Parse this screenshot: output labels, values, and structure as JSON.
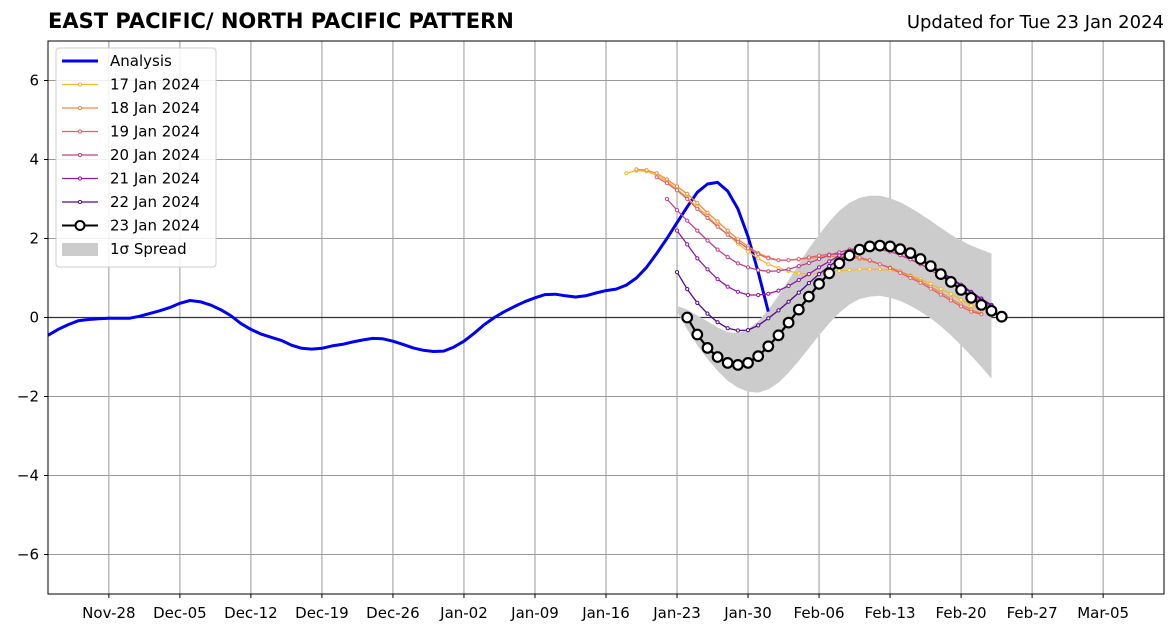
{
  "title": "EAST PACIFIC/ NORTH PACIFIC PATTERN",
  "subtitle": "Updated for Tue 23 Jan 2024",
  "colors": {
    "analysis": "#0000ee",
    "spread": "#cccccc",
    "grid": "#999999",
    "zero_line": "#333333"
  },
  "chart_data": {
    "type": "line",
    "title": "EAST PACIFIC/ NORTH PACIFIC PATTERN",
    "subtitle": "Updated for Tue 23 Jan 2024",
    "xlabel": "",
    "ylabel": "",
    "xlim": [
      "2023-11-22",
      "2024-03-11"
    ],
    "ylim": [
      -7,
      7
    ],
    "x_ticks": [
      "Nov-28",
      "Dec-05",
      "Dec-12",
      "Dec-19",
      "Dec-26",
      "Jan-02",
      "Jan-09",
      "Jan-16",
      "Jan-23",
      "Jan-30",
      "Feb-06",
      "Feb-13",
      "Feb-20",
      "Feb-27",
      "Mar-05"
    ],
    "x_tick_dates": [
      "2023-11-28",
      "2023-12-05",
      "2023-12-12",
      "2023-12-19",
      "2023-12-26",
      "2024-01-02",
      "2024-01-09",
      "2024-01-16",
      "2024-01-23",
      "2024-01-30",
      "2024-02-06",
      "2024-02-13",
      "2024-02-20",
      "2024-02-27",
      "2024-03-05"
    ],
    "y_ticks": [
      "6",
      "4",
      "2",
      "0",
      "−2",
      "−4",
      "−6"
    ],
    "y_tick_values": [
      6,
      4,
      2,
      0,
      -2,
      -4,
      -6
    ],
    "grid": true,
    "legend_position": "upper-left",
    "analysis": {
      "name": "Analysis",
      "color": "#0000ee",
      "start": "2023-11-22",
      "values": [
        -0.45,
        -0.3,
        -0.18,
        -0.08,
        -0.05,
        -0.03,
        -0.02,
        -0.02,
        -0.02,
        0.03,
        0.1,
        0.17,
        0.25,
        0.36,
        0.43,
        0.4,
        0.32,
        0.2,
        0.05,
        -0.15,
        -0.3,
        -0.42,
        -0.5,
        -0.58,
        -0.7,
        -0.78,
        -0.8,
        -0.78,
        -0.72,
        -0.68,
        -0.62,
        -0.57,
        -0.53,
        -0.54,
        -0.6,
        -0.68,
        -0.77,
        -0.83,
        -0.86,
        -0.85,
        -0.75,
        -0.6,
        -0.4,
        -0.18,
        0.0,
        0.15,
        0.28,
        0.4,
        0.5,
        0.58,
        0.59,
        0.55,
        0.52,
        0.55,
        0.62,
        0.68,
        0.72,
        0.82,
        1.0,
        1.27,
        1.62,
        2.0,
        2.4,
        2.8,
        3.17,
        3.38,
        3.42,
        3.2,
        2.75,
        2.05,
        1.15,
        0.15
      ]
    },
    "forecasts": [
      {
        "name": "17 Jan 2024",
        "color": "#f5b82e",
        "start": "2024-01-18",
        "values": [
          3.65,
          3.72,
          3.7,
          3.6,
          3.45,
          3.25,
          3.03,
          2.8,
          2.57,
          2.32,
          2.1,
          1.87,
          1.67,
          1.5,
          1.35,
          1.25,
          1.18,
          1.12,
          1.1,
          1.12,
          1.15,
          1.18,
          1.2,
          1.22,
          1.22,
          1.22,
          1.2,
          1.15,
          1.07,
          0.97,
          0.85,
          0.72,
          0.6,
          0.45,
          0.3,
          0.18
        ]
      },
      {
        "name": "18 Jan 2024",
        "color": "#f08c40",
        "start": "2024-01-19",
        "values": [
          3.75,
          3.73,
          3.65,
          3.5,
          3.32,
          3.13,
          2.9,
          2.65,
          2.43,
          2.2,
          1.98,
          1.8,
          1.63,
          1.52,
          1.45,
          1.45,
          1.47,
          1.5,
          1.53,
          1.55,
          1.55,
          1.53,
          1.48,
          1.43,
          1.35,
          1.27,
          1.17,
          1.05,
          0.92,
          0.78,
          0.63,
          0.48,
          0.33,
          0.2,
          0.1
        ]
      },
      {
        "name": "19 Jan 2024",
        "color": "#e06070",
        "start": "2024-01-21",
        "values": [
          3.55,
          3.4,
          3.22,
          3.0,
          2.75,
          2.52,
          2.3,
          2.1,
          1.92,
          1.75,
          1.6,
          1.5,
          1.45,
          1.45,
          1.48,
          1.52,
          1.57,
          1.6,
          1.6,
          1.57,
          1.52,
          1.45,
          1.35,
          1.25,
          1.13,
          1.0,
          0.88,
          0.73,
          0.58,
          0.43,
          0.28,
          0.15,
          0.08
        ]
      },
      {
        "name": "20 Jan 2024",
        "color": "#c0408c",
        "start": "2024-01-22",
        "values": [
          3.0,
          2.72,
          2.45,
          2.2,
          1.95,
          1.72,
          1.53,
          1.37,
          1.27,
          1.2,
          1.17,
          1.18,
          1.22,
          1.3,
          1.38,
          1.48,
          1.58,
          1.65,
          1.72,
          1.75,
          1.75,
          1.72,
          1.67,
          1.58,
          1.47,
          1.35,
          1.2,
          1.05,
          0.88,
          0.72,
          0.55,
          0.4,
          0.25
        ]
      },
      {
        "name": "21 Jan 2024",
        "color": "#9018a8",
        "start": "2024-01-23",
        "values": [
          2.2,
          1.85,
          1.5,
          1.22,
          0.97,
          0.78,
          0.65,
          0.57,
          0.57,
          0.6,
          0.68,
          0.8,
          0.95,
          1.1,
          1.27,
          1.42,
          1.57,
          1.68,
          1.75,
          1.8,
          1.8,
          1.77,
          1.7,
          1.6,
          1.47,
          1.33,
          1.17,
          1.0,
          0.83,
          0.65,
          0.48,
          0.32
        ]
      },
      {
        "name": "22 Jan 2024",
        "color": "#500890",
        "start": "2024-01-23",
        "values": [
          1.15,
          0.72,
          0.37,
          0.1,
          -0.12,
          -0.27,
          -0.33,
          -0.32,
          -0.2,
          -0.02,
          0.18,
          0.4,
          0.63,
          0.87,
          1.1,
          1.3,
          1.47,
          1.6,
          1.7,
          1.75,
          1.77,
          1.73,
          1.67,
          1.57,
          1.45,
          1.3,
          1.15,
          0.98,
          0.8,
          0.63,
          0.45,
          0.3
        ]
      },
      {
        "name": "23 Jan 2024",
        "color": "#000000",
        "start": "2024-01-24",
        "values": [
          0.0,
          -0.43,
          -0.77,
          -1.0,
          -1.15,
          -1.2,
          -1.15,
          -0.98,
          -0.73,
          -0.45,
          -0.13,
          0.2,
          0.53,
          0.85,
          1.12,
          1.37,
          1.57,
          1.72,
          1.8,
          1.82,
          1.8,
          1.73,
          1.63,
          1.48,
          1.3,
          1.1,
          0.9,
          0.7,
          0.5,
          0.32,
          0.17,
          0.02
        ]
      }
    ],
    "spread": {
      "name": "1σ Spread",
      "color": "#cccccc",
      "start": "2024-01-23",
      "upper": [
        0.3,
        0.2,
        0.05,
        -0.1,
        -0.25,
        -0.37,
        -0.4,
        -0.3,
        -0.1,
        0.2,
        0.55,
        0.95,
        1.35,
        1.75,
        2.1,
        2.42,
        2.7,
        2.9,
        3.03,
        3.08,
        3.08,
        3.02,
        2.92,
        2.78,
        2.62,
        2.45,
        2.27,
        2.1,
        1.95,
        1.82,
        1.72,
        1.62
      ],
      "lower": [
        0.15,
        -0.3,
        -0.7,
        -1.05,
        -1.35,
        -1.6,
        -1.78,
        -1.88,
        -1.9,
        -1.82,
        -1.65,
        -1.4,
        -1.1,
        -0.78,
        -0.45,
        -0.15,
        0.12,
        0.33,
        0.47,
        0.53,
        0.55,
        0.5,
        0.42,
        0.3,
        0.15,
        -0.02,
        -0.22,
        -0.45,
        -0.7,
        -0.97,
        -1.25,
        -1.55
      ]
    }
  }
}
